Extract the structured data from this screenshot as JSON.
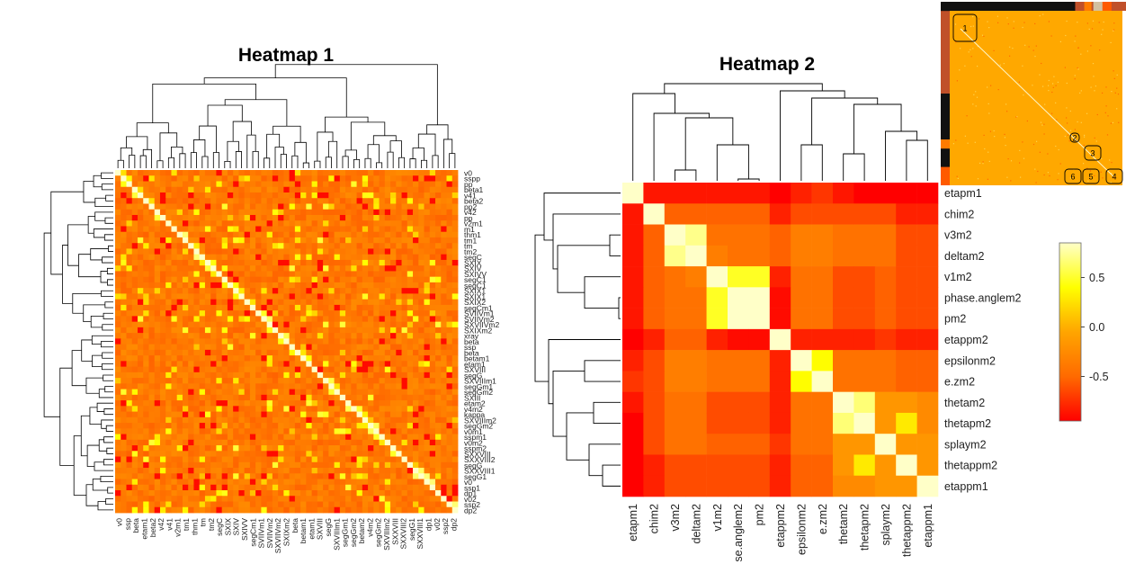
{
  "chart_data": [
    {
      "type": "heatmap",
      "title": "Heatmap 1",
      "row_labels": [
        "v0",
        "sspp",
        "pp",
        "beta1",
        "v41",
        "beta2",
        "pp2",
        "v42",
        "pp",
        "v2m1",
        "m1",
        "thm1",
        "tm1",
        "tm",
        "tm2",
        "segC",
        "SXIX",
        "SXIV",
        "SXIVV",
        "segC1",
        "segC1",
        "SXIX1",
        "SXIX1",
        "SXIX2",
        "segCm1",
        "SVIIVm1",
        "SVIIVm2",
        "SXVIIVm2",
        "SXIXm2",
        "xray",
        "beta",
        "ssp",
        "beta",
        "betam1",
        "etam1",
        "SXVIII",
        "segG",
        "SXVIIIm1",
        "segGm1",
        "segGm2",
        "SXIII",
        "etam2",
        "v4m2",
        "kappa",
        "SXVIIIm2",
        "segGm2",
        "v0m1",
        "sspm1",
        "v0m2",
        "sspm2",
        "SXXVIII",
        "SXXVIII2",
        "segG",
        "SXXVIII1",
        "segG1",
        "v0",
        "ssp1",
        "dp1",
        "v02",
        "ssp2",
        "dp2"
      ],
      "column_labels": [
        "v0",
        "ssp",
        "beta",
        "etam1",
        "beta2",
        "v42",
        "v41",
        "v2m1",
        "tm1",
        "thm1",
        "tm",
        "tm2",
        "segC",
        "SXIX",
        "SXIV",
        "SXIVV",
        "segCm1",
        "SVIIVm1",
        "SVIIVm2",
        "SXVIIVm2",
        "SXIXm2",
        "beta",
        "betam1",
        "etam1",
        "SXVIII",
        "segG",
        "SXVIIIm1",
        "segGm1",
        "segGm2",
        "betam2",
        "v4m2",
        "segGm2",
        "SXVIIIm2",
        "SXXVIII",
        "SXXVIII2",
        "segG1",
        "SXXVIII1",
        "dp1",
        "v02",
        "ssp2",
        "dp2"
      ],
      "colorscale": [
        "#ff0000",
        "#ff6a00",
        "#ffa500",
        "#ffff00",
        "#ffffc8"
      ],
      "diagonal": 1.0
    },
    {
      "type": "heatmap",
      "title": "Heatmap 2",
      "row_labels": [
        "etapm1",
        "chim2",
        "v3m2",
        "deltam2",
        "v1m2",
        "phase.anglem2",
        "pm2",
        "etappm2",
        "epsilonm2",
        "e.zm2",
        "thetam2",
        "thetapm2",
        "splaym2",
        "thetappm2",
        "etappm1"
      ],
      "column_labels": [
        "etapm1",
        "chim2",
        "v3m2",
        "deltam2",
        "v1m2",
        "phase.anglem2",
        "pm2",
        "etappm2",
        "epsilonm2",
        "e.zm2",
        "thetam2",
        "thetapm2",
        "splaym2",
        "thetappm2",
        "etappm1"
      ],
      "column_labels_display": [
        "etapm1",
        "chim2",
        "v3m2",
        "deltam2",
        "v1m2",
        "se.anglem2",
        "pm2",
        "etappm2",
        "epsilonm2",
        "e.zm2",
        "thetam2",
        "thetapm2",
        "splaym2",
        "thetappm2",
        "etappm1"
      ],
      "values": [
        [
          1.0,
          -0.85,
          -0.85,
          -0.85,
          -0.85,
          -0.85,
          -0.85,
          -0.95,
          -0.8,
          -0.7,
          -0.85,
          -0.95,
          -0.95,
          -0.95,
          -0.95
        ],
        [
          -0.85,
          1.0,
          -0.5,
          -0.5,
          -0.5,
          -0.5,
          -0.5,
          -0.8,
          -0.6,
          -0.6,
          -0.6,
          -0.6,
          -0.6,
          -0.8,
          -0.8
        ],
        [
          -0.85,
          -0.5,
          1.0,
          0.85,
          -0.4,
          -0.4,
          -0.4,
          -0.5,
          -0.3,
          -0.3,
          -0.4,
          -0.4,
          -0.4,
          -0.6,
          -0.6
        ],
        [
          -0.85,
          -0.5,
          0.85,
          1.0,
          -0.3,
          -0.4,
          -0.4,
          -0.5,
          -0.3,
          -0.3,
          -0.4,
          -0.4,
          -0.4,
          -0.6,
          -0.6
        ],
        [
          -0.85,
          -0.5,
          -0.4,
          -0.3,
          1.0,
          0.6,
          0.6,
          -0.8,
          -0.4,
          -0.4,
          -0.6,
          -0.6,
          -0.5,
          -0.6,
          -0.6
        ],
        [
          -0.85,
          -0.5,
          -0.4,
          -0.4,
          0.6,
          1.0,
          1.0,
          -0.9,
          -0.4,
          -0.4,
          -0.6,
          -0.6,
          -0.5,
          -0.6,
          -0.6
        ],
        [
          -0.85,
          -0.5,
          -0.4,
          -0.4,
          0.6,
          1.0,
          1.0,
          -0.9,
          -0.4,
          -0.4,
          -0.6,
          -0.6,
          -0.5,
          -0.6,
          -0.6
        ],
        [
          -0.95,
          -0.8,
          -0.5,
          -0.5,
          -0.8,
          -0.9,
          -0.9,
          1.0,
          -0.8,
          -0.8,
          -0.8,
          -0.8,
          -0.7,
          -0.8,
          -0.8
        ],
        [
          -0.8,
          -0.6,
          -0.3,
          -0.3,
          -0.4,
          -0.4,
          -0.4,
          -0.8,
          1.0,
          0.5,
          -0.4,
          -0.4,
          -0.4,
          -0.5,
          -0.5
        ],
        [
          -0.7,
          -0.6,
          -0.3,
          -0.3,
          -0.4,
          -0.4,
          -0.4,
          -0.8,
          0.5,
          1.0,
          -0.4,
          -0.4,
          -0.4,
          -0.5,
          -0.5
        ],
        [
          -0.85,
          -0.6,
          -0.4,
          -0.4,
          -0.6,
          -0.6,
          -0.6,
          -0.8,
          -0.4,
          -0.4,
          1.0,
          0.8,
          -0.1,
          -0.1,
          -0.2
        ],
        [
          -0.95,
          -0.6,
          -0.4,
          -0.4,
          -0.6,
          -0.6,
          -0.6,
          -0.8,
          -0.4,
          -0.4,
          0.8,
          1.0,
          -0.1,
          0.4,
          -0.2
        ],
        [
          -0.95,
          -0.6,
          -0.4,
          -0.4,
          -0.5,
          -0.5,
          -0.5,
          -0.7,
          -0.4,
          -0.4,
          -0.1,
          -0.1,
          1.0,
          -0.1,
          -0.1
        ],
        [
          -0.95,
          -0.8,
          -0.6,
          -0.6,
          -0.6,
          -0.6,
          -0.6,
          -0.8,
          -0.5,
          -0.5,
          -0.1,
          0.4,
          -0.1,
          1.0,
          -0.1
        ],
        [
          -0.95,
          -0.8,
          -0.6,
          -0.6,
          -0.6,
          -0.6,
          -0.6,
          -0.8,
          -0.5,
          -0.5,
          -0.2,
          -0.2,
          -0.1,
          -0.1,
          1.0
        ]
      ],
      "legend": {
        "ticks": [
          0.5,
          0.0,
          -0.5
        ],
        "tick_labels": [
          "0.5",
          "0.0",
          "-0.5"
        ],
        "range": [
          -0.95,
          0.85
        ],
        "placement": "right"
      },
      "colorscale": [
        "#ff0000",
        "#ff6a00",
        "#ffa500",
        "#ffff00",
        "#ffffc8"
      ]
    }
  ],
  "inset": {
    "badges": [
      "1",
      "2",
      "3",
      "4",
      "5",
      "6"
    ]
  }
}
